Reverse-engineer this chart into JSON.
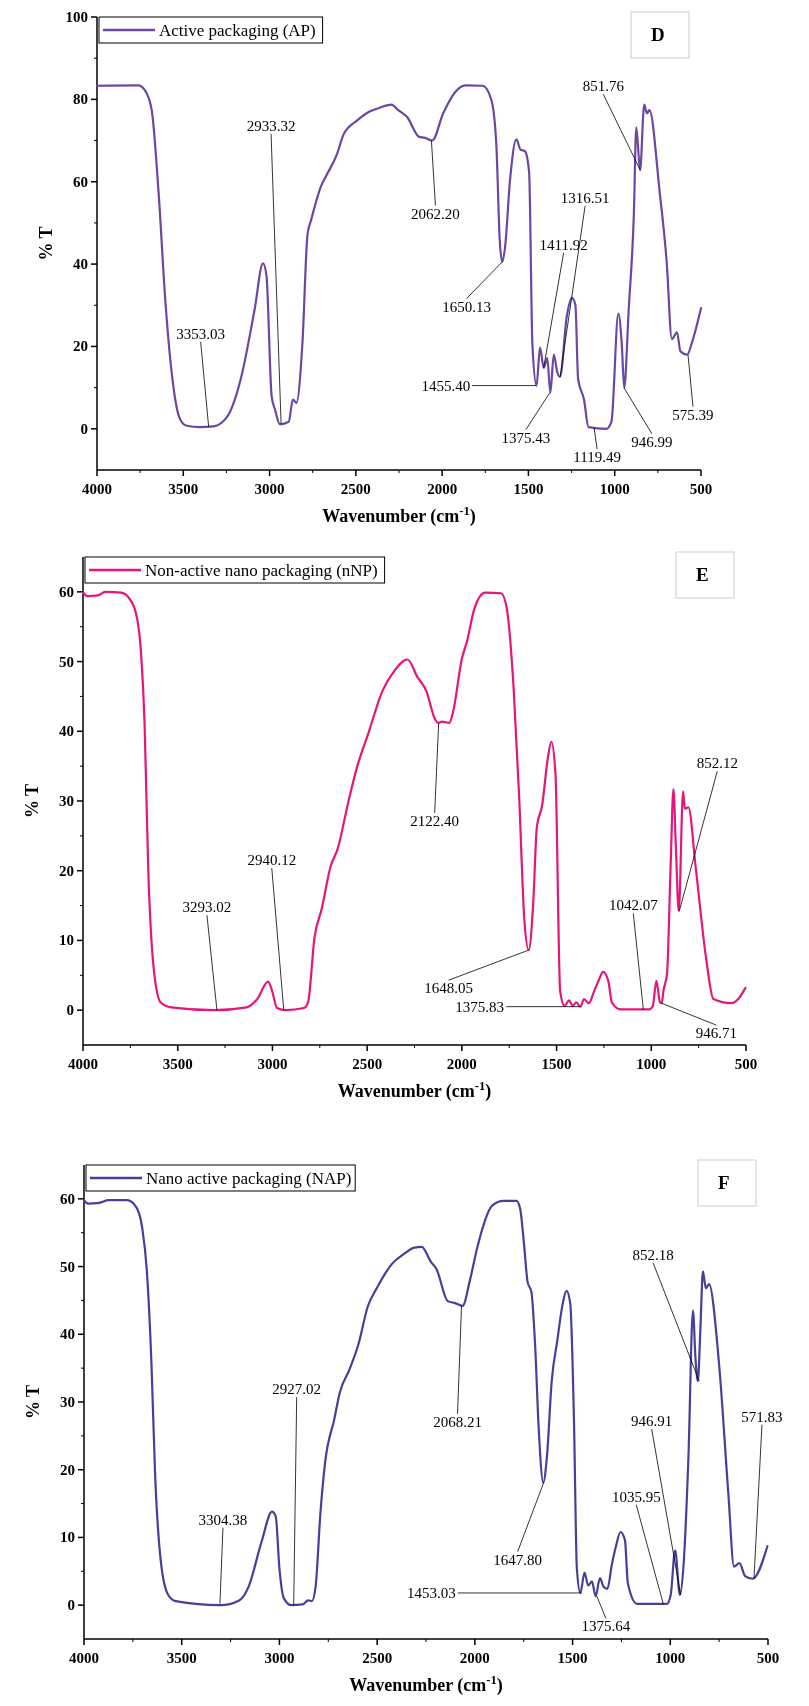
{
  "chart_data": [
    {
      "type": "line",
      "xlabel": "Wavenumber (cm$^{-1}$)",
      "ylabel": "% T",
      "legend": "top left",
      "xlim": [
        4000,
        500
      ],
      "xticks": [
        4000,
        3500,
        3000,
        2500,
        2000,
        1500,
        1000,
        500
      ],
      "ylim": [
        -10,
        100
      ],
      "yticks": [
        0,
        20,
        40,
        60,
        80,
        100
      ],
      "series": [
        {
          "name": "Active packaging (AP)",
          "color": "#6b46a3",
          "x": [
            4000,
            3762,
            3722,
            3683,
            3643,
            3603,
            3563,
            3524,
            3484,
            3405,
            3325,
            3246,
            3167,
            3087,
            3038,
            3018,
            2988,
            2968,
            2940,
            2889,
            2865,
            2845,
            2810,
            2780,
            2760,
            2701,
            2671,
            2611,
            2571,
            2492,
            2423,
            2373,
            2294,
            2254,
            2203,
            2133,
            2103,
            2058,
            1994,
            1924,
            1865,
            1765,
            1715,
            1686,
            1666,
            1652,
            1636,
            1606,
            1570,
            1546,
            1520,
            1496,
            1477,
            1453,
            1433,
            1411,
            1391,
            1373,
            1353,
            1333,
            1317,
            1278,
            1248,
            1228,
            1212,
            1178,
            1152,
            1049,
            1019,
            979,
            959,
            945,
            919,
            889,
            875,
            853,
            829,
            813,
            799,
            739,
            699,
            669,
            639,
            619,
            580,
            550,
            500
          ],
          "values": [
            83.3,
            83.4,
            82.2,
            77.4,
            57.3,
            30.5,
            12.1,
            2.9,
            0.8,
            0.4,
            0.6,
            2.9,
            12.1,
            28.9,
            40.2,
            37.2,
            7.9,
            4.6,
            1.1,
            1.7,
            7.1,
            6.3,
            20.5,
            47.3,
            50.6,
            59,
            61.5,
            66.5,
            71.5,
            74.9,
            77,
            77.8,
            78.7,
            77.4,
            75.7,
            70.9,
            70.7,
            70,
            76.6,
            81.8,
            83.4,
            83.3,
            79.9,
            69,
            45.6,
            40.6,
            43.9,
            60.7,
            70.3,
            67.8,
            67.4,
            62.3,
            20.5,
            10.5,
            19.7,
            14.8,
            17.2,
            8.8,
            18,
            13.8,
            12.6,
            27.2,
            31.8,
            30.1,
            12.1,
            7.1,
            0.4,
            0,
            1.7,
            28,
            20.5,
            10,
            28.9,
            52.3,
            73.2,
            62.8,
            78.7,
            76.6,
            77.4,
            57.3,
            40.6,
            21.8,
            23.4,
            18.8,
            18,
            21.3,
            29.3
          ]
        }
      ],
      "annotations": [
        "D",
        {
          "text": "3353.03",
          "x": 3353.03,
          "y": 0.5
        },
        {
          "text": "2933.32",
          "x": 2933.32,
          "y": 1.2
        },
        {
          "text": "2062.20",
          "x": 2062.2,
          "y": 70
        },
        {
          "text": "1650.13",
          "x": 1650.13,
          "y": 40.6
        },
        {
          "text": "1411.92",
          "x": 1411.92,
          "y": 14.8
        },
        {
          "text": "1316.51",
          "x": 1316.51,
          "y": 12.6
        },
        {
          "text": "1455.40",
          "x": 1455.4,
          "y": 10.5
        },
        {
          "text": "1375.43",
          "x": 1375.43,
          "y": 8.8
        },
        {
          "text": "1119.49",
          "x": 1119.49,
          "y": 0.2
        },
        {
          "text": "946.99",
          "x": 946.99,
          "y": 10
        },
        {
          "text": "851.76",
          "x": 851.76,
          "y": 62.8
        },
        {
          "text": "575.39",
          "x": 575.39,
          "y": 18
        }
      ]
    },
    {
      "type": "line",
      "xlabel": "Wavenumber (cm$^{-1}$)",
      "ylabel": "% T",
      "legend": "top left",
      "xlim": [
        4000,
        500
      ],
      "xticks": [
        4000,
        3500,
        3000,
        2500,
        2000,
        1500,
        1000,
        500
      ],
      "ylim": [
        -5,
        65
      ],
      "yticks": [
        0,
        10,
        20,
        30,
        40,
        50,
        60
      ],
      "series": [
        {
          "name": "Non-active nano packaging (nNP)",
          "color": "#e6157a",
          "x": [
            4000,
            3977,
            3921,
            3883,
            3798,
            3760,
            3722,
            3694,
            3675,
            3656,
            3628,
            3590,
            3534,
            3307,
            3137,
            3080,
            3023,
            3001,
            2976,
            2929,
            2834,
            2812,
            2778,
            2740,
            2693,
            2655,
            2599,
            2552,
            2495,
            2419,
            2363,
            2287,
            2235,
            2188,
            2141,
            2126,
            2104,
            2066,
            2047,
            2000,
            1972,
            1934,
            1877,
            1793,
            1764,
            1727,
            1698,
            1670,
            1647,
            1623,
            1604,
            1576,
            1547,
            1528,
            1506,
            1481,
            1458,
            1434,
            1415,
            1396,
            1374,
            1355,
            1330,
            1302,
            1274,
            1255,
            1227,
            1208,
            1161,
            1011,
            992,
            973,
            954,
            945,
            935,
            917,
            898,
            883,
            870,
            855,
            832,
            823,
            804,
            766,
            710,
            672,
            578,
            541,
            503
          ],
          "values": [
            59.9,
            59.4,
            59.5,
            60,
            59.9,
            59.2,
            57.1,
            51.4,
            41.2,
            20.6,
            6.3,
            1.1,
            0.4,
            0,
            0.4,
            1.6,
            4.1,
            2.7,
            0.3,
            0,
            0.3,
            1.1,
            10.4,
            14.5,
            20.6,
            23.2,
            29.9,
            35,
            39.6,
            45.8,
            48.4,
            50.3,
            47.8,
            45.8,
            41.7,
            41.2,
            41.4,
            41.2,
            42.7,
            50.4,
            53,
            57.6,
            59.9,
            59.8,
            57.8,
            46.3,
            30.9,
            12.9,
            8.6,
            15.5,
            26.3,
            29.4,
            36,
            38.5,
            34,
            2.7,
            0.6,
            1.4,
            0.6,
            1.1,
            0.5,
            1.6,
            1,
            2.7,
            4.5,
            5.5,
            4.2,
            1.1,
            0.1,
            0.1,
            0.6,
            4.2,
            1.1,
            1,
            2.9,
            5.2,
            20.6,
            31.7,
            23.2,
            14.2,
            31.4,
            28.9,
            29.1,
            20.6,
            7.3,
            1.6,
            1,
            1.6,
            3.2
          ]
        }
      ],
      "annotations": [
        "E",
        {
          "text": "3293.02",
          "x": 3293.02,
          "y": 0
        },
        {
          "text": "2940.12",
          "x": 2940.12,
          "y": 0
        },
        {
          "text": "2122.40",
          "x": 2122.4,
          "y": 41.2
        },
        {
          "text": "1648.05",
          "x": 1648.05,
          "y": 8.6
        },
        {
          "text": "1375.83",
          "x": 1375.83,
          "y": 0.5
        },
        {
          "text": "1042.07",
          "x": 1042.07,
          "y": 0.1
        },
        {
          "text": "946.71",
          "x": 946.71,
          "y": 1
        },
        {
          "text": "852.12",
          "x": 852.12,
          "y": 14.2
        }
      ]
    },
    {
      "type": "line",
      "xlabel": "Wavenumber (cm$^{-1}$)",
      "ylabel": "% T",
      "legend": "top left",
      "xlim": [
        4000,
        500
      ],
      "xticks": [
        4000,
        3500,
        3000,
        2500,
        2000,
        1500,
        1000,
        500
      ],
      "ylim": [
        -5,
        65
      ],
      "yticks": [
        0,
        10,
        20,
        30,
        40,
        50,
        60
      ],
      "series": [
        {
          "name": "Nano active packaging (NAP)",
          "color": "#46409a",
          "x": [
            4000,
            3979,
            3922,
            3874,
            3779,
            3731,
            3702,
            3679,
            3655,
            3636,
            3607,
            3569,
            3531,
            3302,
            3206,
            3158,
            3092,
            3038,
            3019,
            3000,
            2977,
            2939,
            2882,
            2853,
            2834,
            2815,
            2790,
            2767,
            2719,
            2691,
            2643,
            2595,
            2548,
            2500,
            2424,
            2366,
            2309,
            2272,
            2225,
            2196,
            2139,
            2101,
            2063,
            2025,
            1987,
            1911,
            1854,
            1787,
            1768,
            1749,
            1730,
            1711,
            1692,
            1673,
            1650,
            1631,
            1607,
            1578,
            1550,
            1531,
            1512,
            1493,
            1478,
            1460,
            1439,
            1420,
            1401,
            1382,
            1360,
            1341,
            1322,
            1299,
            1278,
            1255,
            1232,
            1217,
            1170,
            1017,
            998,
            975,
            951,
            932,
            907,
            884,
            871,
            859,
            846,
            833,
            818,
            802,
            751,
            703,
            674,
            646,
            617,
            579,
            503
          ],
          "values": [
            59.8,
            59.3,
            59.4,
            59.8,
            59.8,
            58.7,
            55.7,
            49.6,
            35.8,
            19.2,
            6.5,
            1.5,
            0.6,
            0,
            0.7,
            2.7,
            9.3,
            13.8,
            13.1,
            5.4,
            1,
            0,
            0.1,
            0.7,
            0.6,
            2.7,
            13.7,
            20.9,
            27.5,
            31.4,
            34.7,
            38.6,
            44.1,
            46.9,
            50.4,
            51.8,
            52.8,
            52.9,
            50.7,
            49.6,
            44.9,
            44.6,
            44.2,
            48,
            52.9,
            59,
            59.7,
            59.7,
            58.5,
            53.5,
            47.7,
            46.3,
            38.6,
            25.9,
            18.1,
            22,
            33,
            39.1,
            44.6,
            46.4,
            44.6,
            27.5,
            5.4,
            1.8,
            4.8,
            2.9,
            3.5,
            1.3,
            4,
            2.7,
            2.4,
            6,
            8.7,
            10.8,
            9.6,
            3.2,
            0.2,
            0.2,
            1.5,
            8.1,
            1.5,
            6,
            22,
            43.5,
            36.4,
            33.1,
            40.8,
            49.3,
            46.8,
            47.4,
            35.8,
            16.5,
            5.7,
            6.2,
            4.3,
            3.9,
            8.7
          ]
        }
      ],
      "annotations": [
        "F",
        {
          "text": "3304.38",
          "x": 3304.38,
          "y": 0.2
        },
        {
          "text": "2927.02",
          "x": 2927.02,
          "y": 0
        },
        {
          "text": "2068.21",
          "x": 2068.21,
          "y": 44.2
        },
        {
          "text": "1647.80",
          "x": 1647.8,
          "y": 18.1
        },
        {
          "text": "1453.03",
          "x": 1453.03,
          "y": 1.8
        },
        {
          "text": "1375.64",
          "x": 1375.64,
          "y": 1.3
        },
        {
          "text": "1035.95",
          "x": 1035.95,
          "y": 0.2
        },
        {
          "text": "946.91",
          "x": 946.91,
          "y": 1.5
        },
        {
          "text": "852.18",
          "x": 852.18,
          "y": 33.1
        },
        {
          "text": "571.83",
          "x": 571.83,
          "y": 3.9
        }
      ]
    }
  ]
}
